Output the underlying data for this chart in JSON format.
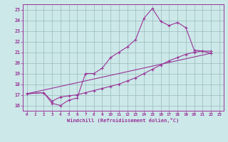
{
  "bg_color": "#cce8e8",
  "line_color": "#993399",
  "grid_color": "#99bbbb",
  "xlabel": "Windchill (Refroidissement éolien,°C)",
  "xlim": [
    -0.5,
    23.5
  ],
  "ylim": [
    15.5,
    25.5
  ],
  "yticks": [
    16,
    17,
    18,
    19,
    20,
    21,
    22,
    23,
    24,
    25
  ],
  "xticks": [
    0,
    1,
    2,
    3,
    4,
    5,
    6,
    7,
    8,
    9,
    10,
    11,
    12,
    13,
    14,
    15,
    16,
    17,
    18,
    19,
    20,
    21,
    22,
    23
  ],
  "line1_x": [
    0,
    2,
    3,
    4,
    5,
    6,
    7,
    8,
    9,
    10,
    11,
    12,
    13,
    14,
    15,
    16,
    17,
    18,
    19,
    20,
    21,
    22
  ],
  "line1_y": [
    17.1,
    17.2,
    16.2,
    16.0,
    16.5,
    16.7,
    19.0,
    19.0,
    19.5,
    20.5,
    21.0,
    21.5,
    22.2,
    24.2,
    25.1,
    23.9,
    23.5,
    23.8,
    23.3,
    21.2,
    21.1,
    21.1
  ],
  "line2_x": [
    0,
    2,
    3,
    4,
    5,
    6,
    7,
    8,
    9,
    10,
    11,
    12,
    13,
    14,
    15,
    16,
    17,
    18,
    19,
    20,
    21,
    22
  ],
  "line2_y": [
    17.1,
    17.2,
    16.4,
    16.8,
    16.9,
    17.0,
    17.2,
    17.4,
    17.6,
    17.8,
    18.0,
    18.3,
    18.6,
    19.0,
    19.4,
    19.8,
    20.2,
    20.5,
    20.8,
    21.0,
    21.1,
    20.9
  ],
  "line3_x": [
    0,
    22
  ],
  "line3_y": [
    17.1,
    20.9
  ]
}
